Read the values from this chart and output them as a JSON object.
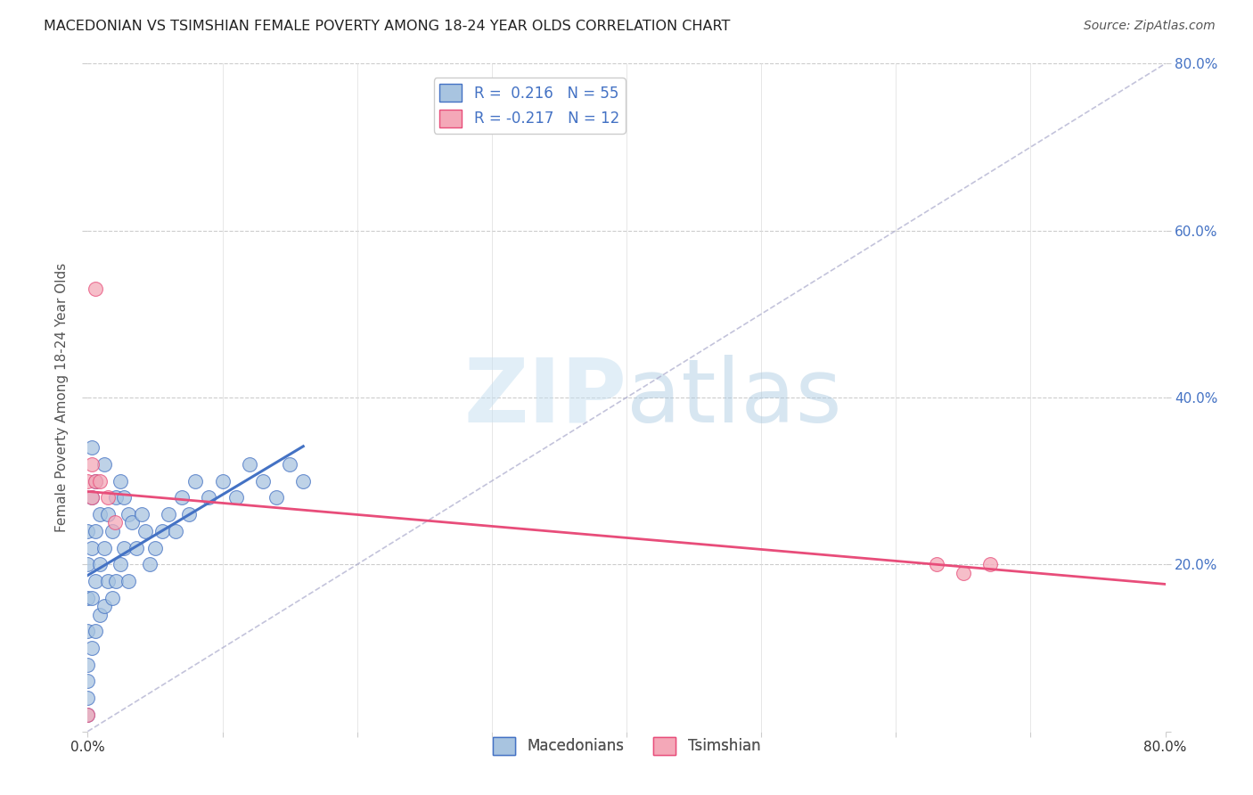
{
  "title": "MACEDONIAN VS TSIMSHIAN FEMALE POVERTY AMONG 18-24 YEAR OLDS CORRELATION CHART",
  "source": "Source: ZipAtlas.com",
  "ylabel": "Female Poverty Among 18-24 Year Olds",
  "xlim": [
    0.0,
    0.8
  ],
  "ylim": [
    0.0,
    0.8
  ],
  "mac_R": 0.216,
  "mac_N": 55,
  "tsi_R": -0.217,
  "tsi_N": 12,
  "mac_color": "#a8c4e0",
  "tsi_color": "#f4a8b8",
  "mac_line_color": "#4472c4",
  "tsi_line_color": "#e84d7a",
  "watermark_zip": "ZIP",
  "watermark_atlas": "atlas",
  "background_color": "#ffffff",
  "macedonians_x": [
    0.0,
    0.0,
    0.0,
    0.0,
    0.0,
    0.0,
    0.0,
    0.0,
    0.003,
    0.003,
    0.003,
    0.003,
    0.003,
    0.006,
    0.006,
    0.006,
    0.006,
    0.009,
    0.009,
    0.009,
    0.012,
    0.012,
    0.012,
    0.015,
    0.015,
    0.018,
    0.018,
    0.021,
    0.021,
    0.024,
    0.024,
    0.027,
    0.027,
    0.03,
    0.03,
    0.033,
    0.036,
    0.04,
    0.043,
    0.046,
    0.05,
    0.055,
    0.06,
    0.065,
    0.07,
    0.075,
    0.08,
    0.09,
    0.1,
    0.11,
    0.12,
    0.13,
    0.14,
    0.15,
    0.16
  ],
  "macedonians_y": [
    0.04,
    0.08,
    0.12,
    0.16,
    0.2,
    0.24,
    0.02,
    0.06,
    0.1,
    0.16,
    0.22,
    0.28,
    0.34,
    0.12,
    0.18,
    0.24,
    0.3,
    0.14,
    0.2,
    0.26,
    0.15,
    0.22,
    0.32,
    0.18,
    0.26,
    0.16,
    0.24,
    0.18,
    0.28,
    0.2,
    0.3,
    0.22,
    0.28,
    0.18,
    0.26,
    0.25,
    0.22,
    0.26,
    0.24,
    0.2,
    0.22,
    0.24,
    0.26,
    0.24,
    0.28,
    0.26,
    0.3,
    0.28,
    0.3,
    0.28,
    0.32,
    0.3,
    0.28,
    0.32,
    0.3
  ],
  "tsimshian_x": [
    0.0,
    0.0,
    0.003,
    0.003,
    0.006,
    0.006,
    0.009,
    0.015,
    0.02,
    0.63,
    0.65,
    0.67
  ],
  "tsimshian_y": [
    0.02,
    0.3,
    0.28,
    0.32,
    0.3,
    0.53,
    0.3,
    0.28,
    0.25,
    0.2,
    0.19,
    0.2
  ]
}
